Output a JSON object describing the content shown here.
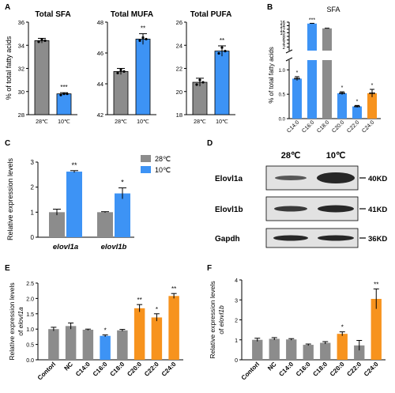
{
  "colors": {
    "gray": "#8c8c8c",
    "blue": "#3d93f5",
    "orange": "#f7931e",
    "axis": "#000000",
    "band_bg": "#e2e2e2",
    "band_dark": "#1c1c1c"
  },
  "panel_labels": {
    "A": "A",
    "B": "B",
    "C": "C",
    "D": "D",
    "E": "E",
    "F": "F"
  },
  "chart_data": [
    {
      "panel": "A",
      "type": "bar",
      "title": "Total SFA",
      "ylabel": "% of total fatty acids",
      "ylim": [
        28,
        36
      ],
      "yticks": [
        28,
        30,
        32,
        34,
        36
      ],
      "categories": [
        "28℃",
        "10℃"
      ],
      "values": [
        34.4,
        29.8
      ],
      "errors": [
        0.2,
        0.1
      ],
      "colors": [
        "gray",
        "blue"
      ],
      "significance": [
        "",
        "***"
      ],
      "points": [
        [
          34.3,
          34.5,
          34.4
        ],
        [
          29.7,
          29.8,
          29.8
        ]
      ]
    },
    {
      "panel": "A",
      "type": "bar",
      "title": "Total MUFA",
      "ylim": [
        42,
        48
      ],
      "yticks": [
        42,
        44,
        46,
        48
      ],
      "categories": [
        "28℃",
        "10℃"
      ],
      "values": [
        44.8,
        46.9
      ],
      "errors": [
        0.2,
        0.35
      ],
      "colors": [
        "gray",
        "blue"
      ],
      "significance": [
        "",
        "**"
      ],
      "points": [
        [
          44.7,
          44.9,
          44.8
        ],
        [
          46.8,
          47.0,
          46.9
        ]
      ]
    },
    {
      "panel": "A",
      "type": "bar",
      "title": "Total PUFA",
      "ylim": [
        18,
        26
      ],
      "yticks": [
        18,
        20,
        22,
        24,
        26
      ],
      "categories": [
        "28℃",
        "10℃"
      ],
      "values": [
        20.8,
        23.5
      ],
      "errors": [
        0.35,
        0.45
      ],
      "colors": [
        "gray",
        "blue"
      ],
      "significance": [
        "",
        "**"
      ],
      "points": [
        [
          20.6,
          21.0,
          20.8
        ],
        [
          23.3,
          23.8,
          23.5
        ]
      ]
    },
    {
      "panel": "B",
      "type": "bar",
      "title": "SFA",
      "ylabel": "% of total fatty acids",
      "yticks_low": [
        0.0,
        0.5,
        1.0
      ],
      "yticks_high": [
        2,
        4,
        6,
        8,
        10,
        12,
        14,
        16
      ],
      "categories": [
        "C14:0",
        "C16:0",
        "C18:0",
        "C20:0",
        "C22:0",
        "C24:0"
      ],
      "values": [
        0.82,
        15.2,
        12.5,
        0.52,
        0.25,
        0.52
      ],
      "errors": [
        0.04,
        0.15,
        0.1,
        0.03,
        0.02,
        0.08
      ],
      "colors": [
        "blue",
        "blue",
        "gray",
        "blue",
        "blue",
        "orange"
      ],
      "significance": [
        "*",
        "***",
        "",
        "*",
        "*",
        "*"
      ]
    },
    {
      "panel": "C",
      "type": "bar",
      "ylabel": "Relative expression levels",
      "ylim": [
        0,
        3
      ],
      "yticks": [
        0,
        1,
        2,
        3
      ],
      "categories": [
        "elovl1a",
        "elovl1b"
      ],
      "series": [
        {
          "name": "28℃",
          "values": [
            1.0,
            1.0
          ],
          "errors": [
            0.12,
            0.02
          ]
        },
        {
          "name": "10℃",
          "values": [
            2.62,
            1.75
          ],
          "errors": [
            0.04,
            0.22
          ]
        }
      ],
      "significance": [
        "**",
        "*"
      ]
    },
    {
      "panel": "D",
      "type": "table",
      "columns": [
        "28℃",
        "10℃"
      ],
      "rows": [
        "Elovl1a",
        "Elovl1b",
        "Gapdh"
      ],
      "sizes": [
        "40KD",
        "41KD",
        "36KD"
      ]
    },
    {
      "panel": "E",
      "type": "bar",
      "ylabel": "Relative expression levels of elovl1a",
      "ylim": [
        0,
        2.5
      ],
      "yticks": [
        0.0,
        0.5,
        1.0,
        1.5,
        2.0,
        2.5
      ],
      "categories": [
        "Contorl",
        "NC",
        "C14:0",
        "C16:0",
        "C18:0",
        "C20:0",
        "C22:0",
        "C24:0"
      ],
      "values": [
        1.0,
        1.1,
        0.98,
        0.78,
        0.96,
        1.68,
        1.38,
        2.08
      ],
      "errors": [
        0.06,
        0.1,
        0.02,
        0.03,
        0.03,
        0.12,
        0.12,
        0.08
      ],
      "colors": [
        "gray",
        "gray",
        "gray",
        "blue",
        "gray",
        "orange",
        "orange",
        "orange"
      ],
      "significance": [
        "",
        "",
        "",
        "*",
        "",
        "**",
        "*",
        "**"
      ]
    },
    {
      "panel": "F",
      "type": "bar",
      "ylabel": "Relative expression levels of elovl1b",
      "ylim": [
        0,
        4
      ],
      "yticks": [
        0,
        1,
        2,
        3,
        4
      ],
      "categories": [
        "Contorl",
        "NC",
        "C14:0",
        "C16:0",
        "C18:0",
        "C20:0",
        "C22:0",
        "C24:0"
      ],
      "values": [
        1.0,
        1.05,
        1.02,
        0.75,
        0.85,
        1.3,
        0.72,
        3.05
      ],
      "errors": [
        0.08,
        0.06,
        0.04,
        0.04,
        0.06,
        0.1,
        0.25,
        0.5
      ],
      "colors": [
        "gray",
        "gray",
        "gray",
        "gray",
        "gray",
        "orange",
        "gray",
        "orange"
      ],
      "significance": [
        "",
        "",
        "",
        "",
        "",
        "*",
        "",
        "**"
      ]
    }
  ]
}
